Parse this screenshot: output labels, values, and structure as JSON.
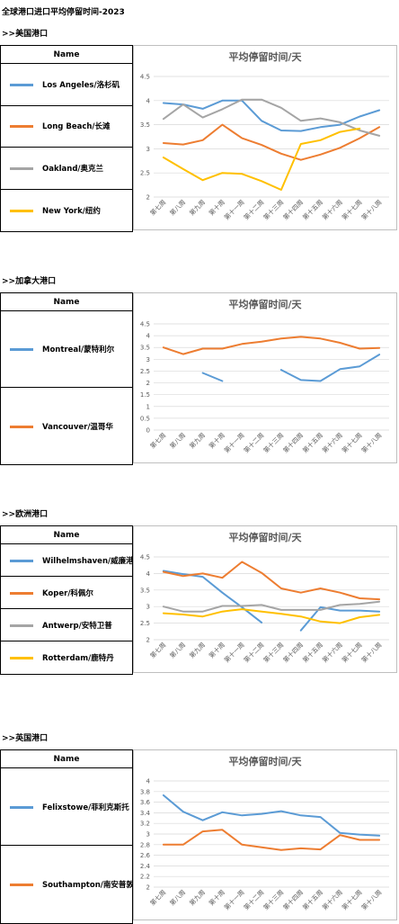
{
  "page": {
    "title": "全球港口进口平均停留时间-2023"
  },
  "table_header": "Name",
  "colors": {
    "blue": "#5B9BD5",
    "orange": "#ED7D31",
    "gray": "#A5A5A5",
    "yellow": "#FFC000"
  },
  "chart_data": [
    {
      "type": "line",
      "section_label": ">>美国港口",
      "title": "平均停留时间/天",
      "categories": [
        "第七周",
        "第八周",
        "第九周",
        "第十周",
        "第十一周",
        "第十二周",
        "第十三周",
        "第十四周",
        "第十五周",
        "第十六周",
        "第十七周",
        "第十八周"
      ],
      "y_ticks": [
        2,
        2.5,
        3,
        3.5,
        4,
        4.5
      ],
      "ylim": [
        2,
        4.5
      ],
      "grid": true,
      "series": [
        {
          "name": "Los Angeles/洛杉矶",
          "color": "#5B9BD5",
          "values": [
            3.95,
            3.92,
            3.83,
            4.0,
            4.0,
            3.58,
            3.38,
            3.37,
            3.45,
            3.5,
            3.67,
            3.8
          ]
        },
        {
          "name": "Long Beach/长滩",
          "color": "#ED7D31",
          "values": [
            3.12,
            3.09,
            3.18,
            3.5,
            3.22,
            3.08,
            2.9,
            2.77,
            2.88,
            3.02,
            3.22,
            3.45
          ]
        },
        {
          "name": "Oakland/奥克兰",
          "color": "#A5A5A5",
          "values": [
            3.62,
            3.92,
            3.65,
            3.82,
            4.02,
            4.02,
            3.85,
            3.58,
            3.63,
            3.55,
            3.38,
            3.27
          ]
        },
        {
          "name": "New York/纽约",
          "color": "#FFC000",
          "values": [
            2.82,
            2.58,
            2.35,
            2.5,
            2.48,
            2.33,
            2.15,
            3.1,
            3.18,
            3.35,
            3.42,
            null
          ]
        }
      ]
    },
    {
      "type": "line",
      "section_label": ">>加拿大港口",
      "title": "平均停留时间/天",
      "categories": [
        "第七周",
        "第八周",
        "第九周",
        "第十周",
        "第十一周",
        "第十二周",
        "第十三周",
        "第十四周",
        "第十五周",
        "第十六周",
        "第十七周",
        "第十八周"
      ],
      "y_ticks": [
        0,
        0.5,
        1,
        1.5,
        2,
        2.5,
        3,
        3.5,
        4,
        4.5
      ],
      "ylim": [
        0,
        4.5
      ],
      "grid": true,
      "series": [
        {
          "name": "Montreal/蒙特利尔",
          "color": "#5B9BD5",
          "values": [
            null,
            null,
            2.42,
            2.08,
            null,
            null,
            2.55,
            2.12,
            2.08,
            2.58,
            2.7,
            3.2
          ]
        },
        {
          "name": "Vancouver/温哥华",
          "color": "#ED7D31",
          "values": [
            3.5,
            3.22,
            3.45,
            3.45,
            3.65,
            3.75,
            3.88,
            3.95,
            3.88,
            3.7,
            3.45,
            3.48
          ]
        }
      ]
    },
    {
      "type": "line",
      "section_label": ">>欧洲港口",
      "title": "平均停留时间/天",
      "categories": [
        "第七周",
        "第八周",
        "第九周",
        "第十周",
        "第十一周",
        "第十二周",
        "第十三周",
        "第十四周",
        "第十五周",
        "第十六周",
        "第十七周",
        "第十八周"
      ],
      "y_ticks": [
        2,
        2.5,
        3,
        3.5,
        4,
        4.5
      ],
      "ylim": [
        2,
        4.5
      ],
      "grid": true,
      "series": [
        {
          "name": "Wilhelmshaven/威廉港",
          "color": "#5B9BD5",
          "values": [
            4.08,
            3.98,
            3.9,
            3.42,
            2.98,
            2.52,
            null,
            2.28,
            2.98,
            2.88,
            2.88,
            2.85
          ]
        },
        {
          "name": "Koper/科佩尔",
          "color": "#ED7D31",
          "values": [
            4.05,
            3.92,
            4.0,
            3.87,
            4.35,
            4.02,
            3.55,
            3.42,
            3.55,
            3.42,
            3.25,
            3.22
          ]
        },
        {
          "name": "Antwerp/安特卫普",
          "color": "#A5A5A5",
          "values": [
            3.0,
            2.85,
            2.85,
            3.02,
            3.02,
            3.05,
            2.9,
            2.9,
            2.9,
            3.05,
            3.08,
            3.15
          ]
        },
        {
          "name": "Rotterdam/鹿特丹",
          "color": "#FFC000",
          "values": [
            2.8,
            2.76,
            2.7,
            2.85,
            2.92,
            2.85,
            2.78,
            2.7,
            2.55,
            2.5,
            2.68,
            2.75
          ]
        }
      ]
    },
    {
      "type": "line",
      "section_label": ">>英国港口",
      "title": "平均停留时间/天",
      "categories": [
        "第七周",
        "第八周",
        "第九周",
        "第十周",
        "第十一周",
        "第十二周",
        "第十三周",
        "第十四周",
        "第十五周",
        "第十六周",
        "第十七周",
        "第十八周"
      ],
      "y_ticks": [
        2,
        2.2,
        2.4,
        2.6,
        2.8,
        3,
        3.2,
        3.4,
        3.6,
        3.8,
        4
      ],
      "ylim": [
        2,
        4
      ],
      "grid": true,
      "series": [
        {
          "name": "Felixstowe/菲利克斯托",
          "color": "#5B9BD5",
          "values": [
            3.73,
            3.42,
            3.26,
            3.41,
            3.35,
            3.38,
            3.43,
            3.35,
            3.32,
            3.02,
            2.99,
            2.97
          ]
        },
        {
          "name": "Southampton/南安普敦",
          "color": "#ED7D31",
          "values": [
            2.8,
            2.8,
            3.05,
            3.08,
            2.8,
            2.75,
            2.7,
            2.73,
            2.71,
            2.98,
            2.89,
            2.89
          ]
        }
      ]
    }
  ]
}
